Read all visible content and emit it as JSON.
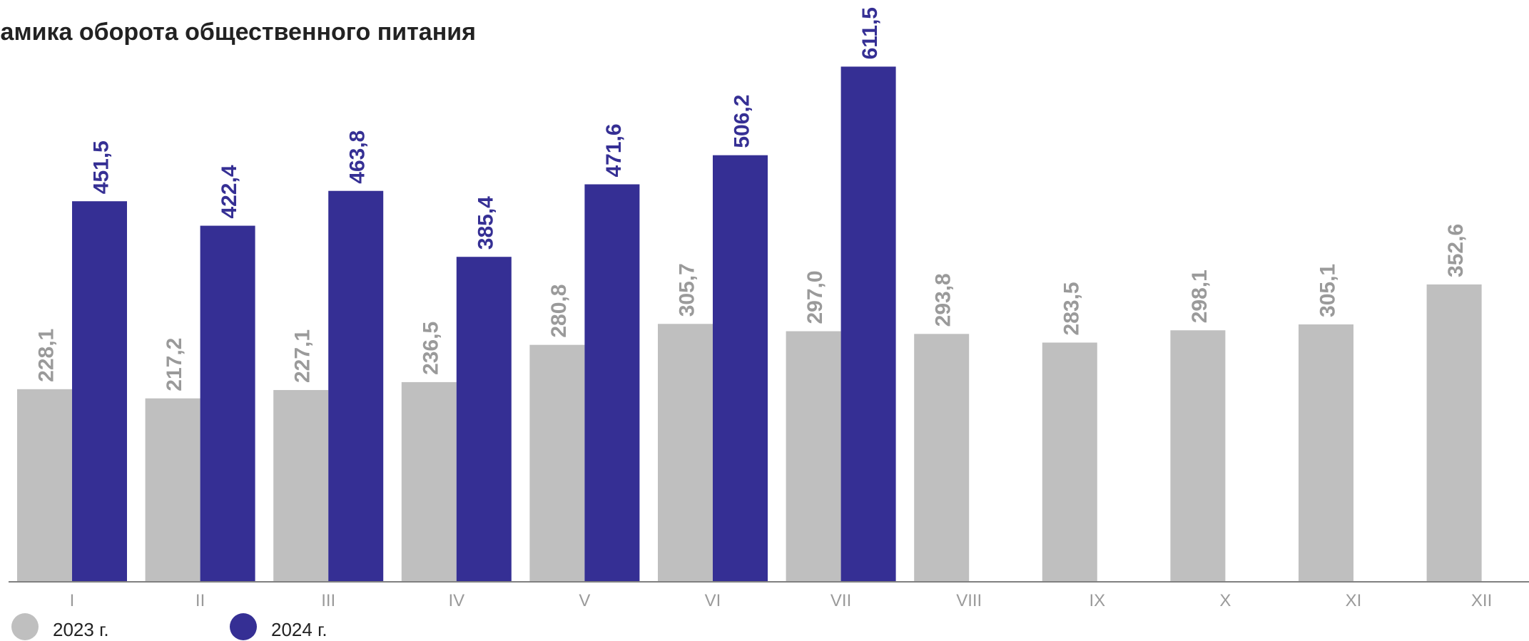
{
  "chart_data": {
    "type": "bar",
    "title": "намика оборота общественного питания",
    "categories": [
      "I",
      "II",
      "III",
      "IV",
      "V",
      "VI",
      "VII",
      "VIII",
      "IX",
      "X",
      "XI",
      "XII"
    ],
    "series": [
      {
        "name": "2023 г.",
        "color": "#bfbfbf",
        "values": [
          228.1,
          217.2,
          227.1,
          236.5,
          280.8,
          305.7,
          297.0,
          293.8,
          283.5,
          298.1,
          305.1,
          352.6
        ],
        "labels": [
          "228,1",
          "217,2",
          "227,1",
          "236,5",
          "280,8",
          "305,7",
          "297,0",
          "293,8",
          "283,5",
          "298,1",
          "305,1",
          "352,6"
        ]
      },
      {
        "name": "2024 г.",
        "color": "#352f94",
        "values": [
          451.5,
          422.4,
          463.8,
          385.4,
          471.6,
          506.2,
          611.5,
          null,
          null,
          null,
          null,
          null
        ],
        "labels": [
          "451,5",
          "422,4",
          "463,8",
          "385,4",
          "471,6",
          "506,2",
          "611,5",
          "",
          "",
          "",
          "",
          ""
        ]
      }
    ],
    "xlabel": "",
    "ylabel": "",
    "ylim": [
      0,
      640
    ],
    "grid": false,
    "legend_position": "bottom-left",
    "colors": {
      "axis": "#808080",
      "tick_label": "#9a9a9a",
      "title": "#222222"
    }
  }
}
